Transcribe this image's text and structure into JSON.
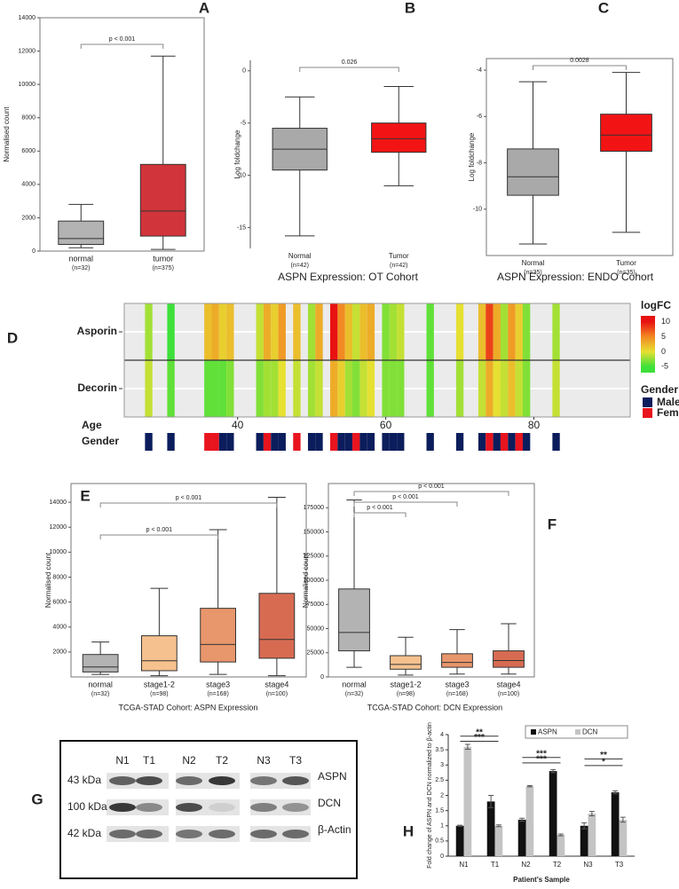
{
  "chart_data": [
    {
      "type": "box",
      "panel_label": "A",
      "ylabel": "Normalised count",
      "categories": [
        "normal",
        "tumor"
      ],
      "n_labels": [
        "(n=32)",
        "(n=375)"
      ],
      "colors": [
        "#b3b3b3",
        "#d1343a"
      ],
      "boxes": [
        {
          "min": 200,
          "q1": 400,
          "median": 750,
          "q3": 1800,
          "max": 2800
        },
        {
          "min": 100,
          "q1": 900,
          "median": 2400,
          "q3": 5200,
          "max": 11700
        }
      ],
      "ylim": [
        0,
        14000
      ],
      "yticks": [
        0,
        2000,
        4000,
        6000,
        8000,
        10000,
        12000,
        14000
      ],
      "annotations": [
        "p < 0.001"
      ]
    },
    {
      "type": "box",
      "panel_label": "B",
      "ylabel": "Log foldchange",
      "caption": "ASPN Expression: OT Cohort",
      "categories": [
        "Normal",
        "Tumor"
      ],
      "n_labels": [
        "(n=42)",
        "(n=42)"
      ],
      "colors": [
        "#a9a9a9",
        "#f21414"
      ],
      "boxes": [
        {
          "min": -15.8,
          "q1": -9.5,
          "median": -7.5,
          "q3": -5.5,
          "max": -2.5
        },
        {
          "min": -11,
          "q1": -7.8,
          "median": -6.5,
          "q3": -5,
          "max": -1.5
        }
      ],
      "ylim": [
        -17,
        1
      ],
      "yticks": [
        0,
        -5,
        -10,
        -15
      ],
      "annotations": [
        "0.026"
      ]
    },
    {
      "type": "box",
      "panel_label": "C",
      "ylabel": "Log foldchange",
      "caption": "ASPN Expression: ENDO Cohort",
      "categories": [
        "Normal",
        "Tumor"
      ],
      "n_labels": [
        "(n=35)",
        "(n=35)"
      ],
      "colors": [
        "#a9a9a9",
        "#f21414"
      ],
      "boxes": [
        {
          "min": -11.5,
          "q1": -9.4,
          "median": -8.6,
          "q3": -7.4,
          "max": -4.5
        },
        {
          "min": -11,
          "q1": -7.5,
          "median": -6.8,
          "q3": -5.9,
          "max": -4.1
        }
      ],
      "ylim": [
        -12,
        -3.5
      ],
      "yticks": [
        -4,
        -6,
        -8,
        -10
      ],
      "annotations": [
        "0.0028"
      ]
    },
    {
      "type": "heatmap",
      "panel_label": "D",
      "xlabel": "Age",
      "gender_label": "Gender",
      "xlim": [
        24.7,
        93
      ],
      "xticks": [
        40,
        60,
        80
      ],
      "x": [
        28,
        31,
        36,
        37,
        38,
        39,
        43,
        44,
        45,
        46,
        48,
        50,
        51,
        53,
        54,
        55,
        56,
        57,
        58,
        60,
        61,
        62,
        66,
        70,
        73,
        74,
        75,
        76,
        77,
        78,
        79,
        83
      ],
      "series": [
        {
          "name": "Asporin",
          "values": [
            -2,
            -5,
            2,
            3,
            1,
            2,
            -1,
            3,
            1,
            4,
            2,
            -2,
            3,
            12,
            5,
            2,
            -1,
            2,
            3,
            -3,
            -2,
            -1,
            -4,
            0,
            2,
            8,
            3,
            -2,
            4,
            1,
            -3,
            -2
          ]
        },
        {
          "name": "Decorin",
          "values": [
            -1,
            -4,
            -4,
            -4,
            -4,
            -3,
            -3,
            -2,
            -2,
            0,
            -1,
            -2,
            -1,
            3,
            1,
            -2,
            -3,
            -1,
            0,
            -3,
            -3,
            -3,
            -4,
            -2,
            -1,
            3,
            0,
            -1,
            2,
            -1,
            -3,
            -1
          ]
        }
      ],
      "gender": [
        "Male",
        "Male",
        "Female",
        "Female",
        "Male",
        "Male",
        "Male",
        "Female",
        "Male",
        "Male",
        "Female",
        "Male",
        "Male",
        "Female",
        "Male",
        "Male",
        "Female",
        "Male",
        "Male",
        "Male",
        "Male",
        "Male",
        "Male",
        "Male",
        "Male",
        "Female",
        "Male",
        "Female",
        "Male",
        "Female",
        "Male",
        "Male"
      ],
      "colorbar": {
        "title": "logFC",
        "clim": [
          -7,
          12
        ],
        "ticks": [
          10,
          5,
          0,
          -5
        ],
        "colormap": [
          {
            "value": -5,
            "color": "#3ee03a"
          },
          {
            "value": 0,
            "color": "#e6e032"
          },
          {
            "value": 5,
            "color": "#f28a22"
          },
          {
            "value": 10,
            "color": "#e81212"
          }
        ]
      },
      "gender_legend": {
        "title": "Gender",
        "items": [
          {
            "name": "Male",
            "color": "#0b1d5c"
          },
          {
            "name": "Female",
            "color": "#e8141e"
          }
        ]
      }
    },
    {
      "type": "box",
      "panel_label": "E",
      "ylabel": "Normalised count",
      "caption": "TCGA-STAD Cohort: ASPN Expression",
      "categories": [
        "normal",
        "stage1-2",
        "stage3",
        "stage4"
      ],
      "n_labels": [
        "(n=32)",
        "(n=98)",
        "(n=168)",
        "(n=100)"
      ],
      "colors": [
        "#b3b3b3",
        "#f5c18e",
        "#e8966b",
        "#d76b52"
      ],
      "boxes": [
        {
          "min": 200,
          "q1": 400,
          "median": 800,
          "q3": 1800,
          "max": 2800
        },
        {
          "min": 100,
          "q1": 500,
          "median": 1300,
          "q3": 3300,
          "max": 7100
        },
        {
          "min": 200,
          "q1": 1200,
          "median": 2600,
          "q3": 5500,
          "max": 11800
        },
        {
          "min": 100,
          "q1": 1500,
          "median": 3000,
          "q3": 6700,
          "max": 14400
        }
      ],
      "ylim": [
        0,
        15500
      ],
      "yticks": [
        2000,
        4000,
        6000,
        8000,
        10000,
        12000,
        14000
      ],
      "annotations": [
        "p < 0.001",
        "p < 0.001"
      ]
    },
    {
      "type": "box",
      "panel_label": "F",
      "ylabel": "Normalised count",
      "caption": "TCGA-STAD Cohort: DCN Expression",
      "categories": [
        "normal",
        "stage1-2",
        "stage3",
        "stage4"
      ],
      "n_labels": [
        "(n=32)",
        "(n=98)",
        "(n=168)",
        "(n=100)"
      ],
      "colors": [
        "#b3b3b3",
        "#f5c18e",
        "#e8966b",
        "#d76b52"
      ],
      "boxes": [
        {
          "min": 10000,
          "q1": 27000,
          "median": 46000,
          "q3": 91000,
          "max": 183000
        },
        {
          "min": 2000,
          "q1": 8000,
          "median": 13000,
          "q3": 22000,
          "max": 41000
        },
        {
          "min": 3000,
          "q1": 10000,
          "median": 15000,
          "q3": 24000,
          "max": 49000
        },
        {
          "min": 3000,
          "q1": 10000,
          "median": 17000,
          "q3": 27000,
          "max": 55000
        }
      ],
      "ylim": [
        0,
        200000
      ],
      "yticks": [
        0,
        25000,
        50000,
        75000,
        100000,
        125000,
        150000,
        175000
      ],
      "annotations": [
        "p < 0.001",
        "p < 0.001",
        "p < 0.001"
      ]
    },
    {
      "type": "blot",
      "panel_label": "G",
      "lanes": [
        "N1",
        "T1",
        "N2",
        "T2",
        "N3",
        "T3"
      ],
      "markers": [
        "43 kDa",
        "100 kDa",
        "42 kDa"
      ],
      "proteins": [
        "ASPN",
        "DCN",
        "β-Actin"
      ]
    },
    {
      "type": "bar",
      "panel_label": "H",
      "ylabel": "Fold change of ASPN and DCN normalized to β-actin",
      "xlabel": "Patient's Sample",
      "categories": [
        "N1",
        "T1",
        "N2",
        "T2",
        "N3",
        "T3"
      ],
      "series": [
        {
          "name": "ASPN",
          "color": "#111111",
          "values": [
            1,
            1.8,
            1.2,
            2.8,
            1.0,
            2.1
          ],
          "errors": [
            0.02,
            0.2,
            0.05,
            0.05,
            0.1,
            0.05
          ]
        },
        {
          "name": "DCN",
          "color": "#c4c4c4",
          "values": [
            3.6,
            1.0,
            2.3,
            0.7,
            1.4,
            1.2
          ],
          "errors": [
            0.08,
            0.03,
            0.02,
            0.03,
            0.07,
            0.08
          ]
        }
      ],
      "ylim": [
        0,
        4
      ],
      "yticks": [
        0,
        0.5,
        1,
        1.5,
        2,
        2.5,
        3,
        3.5,
        4
      ],
      "annotations": [
        "**",
        "***",
        "***",
        "***",
        "**",
        "*"
      ]
    }
  ]
}
